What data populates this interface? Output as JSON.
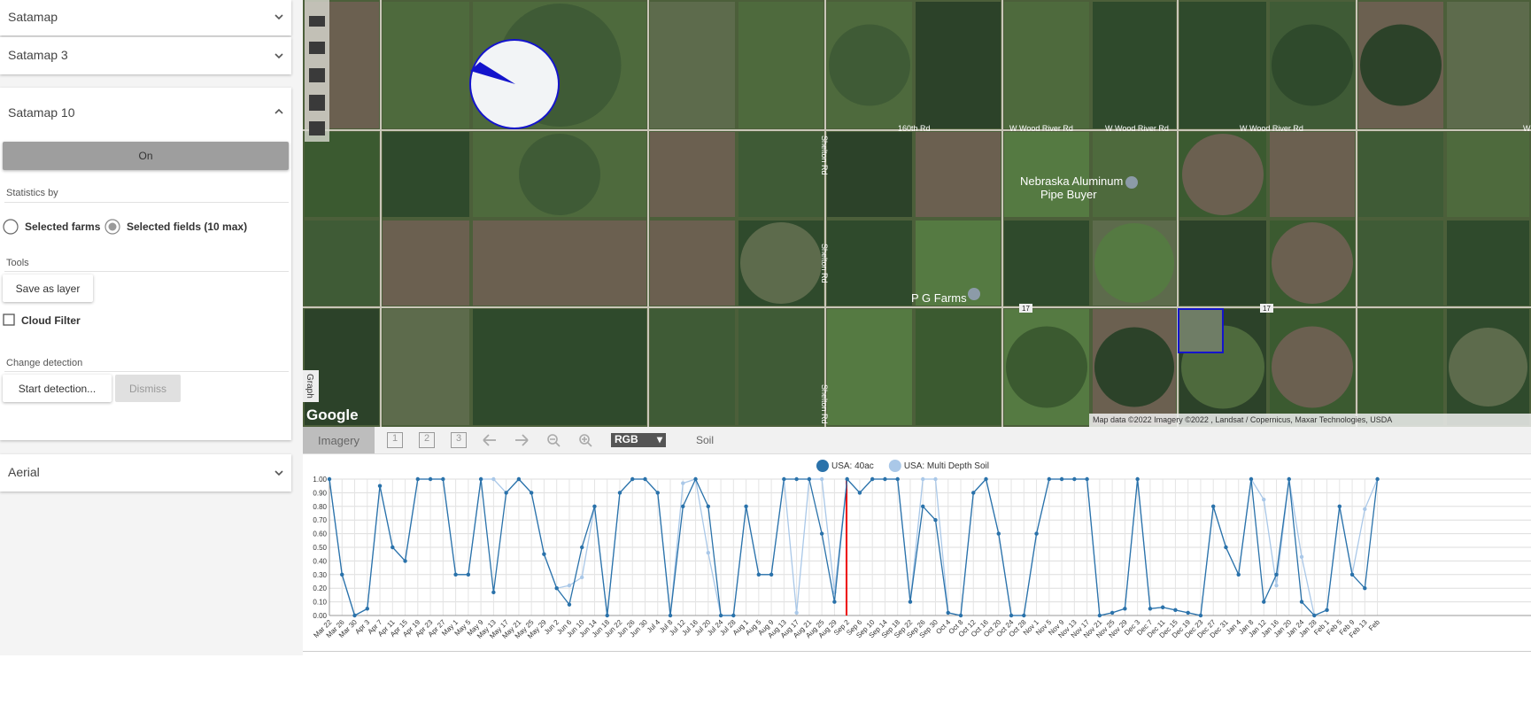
{
  "sidebar": {
    "sections": [
      "Satamap",
      "Satamap 3",
      "Satamap 10",
      "Aerial"
    ],
    "on_button": "On",
    "statistics_label": "Statistics by",
    "options": [
      "Selected farms",
      "Selected fields (10 max)"
    ],
    "tools_label": "Tools",
    "save_button": "Save as layer",
    "cloud_filter": "Cloud Filter",
    "change_label": "Change detection",
    "start_button": "Start detection...",
    "dismiss_button": "Dismiss"
  },
  "map": {
    "labels": [
      "160th Rd",
      "W Wood River Rd",
      "W Wood River Rd",
      "W Wood River Rd",
      "W",
      "Shelton Rd",
      "Shelton Rd",
      "Shelton Rd",
      "Nebraska Aluminum",
      "Pipe Buyer",
      "P G Farms",
      "17",
      "17"
    ],
    "logo": "Google",
    "attribution": "Map data ©2022 Imagery ©2022 , Landsat / Copernicus, Maxar Technologies, USDA",
    "graph_tab": "Graph"
  },
  "toolbar": {
    "tab": "Imagery",
    "pages": [
      "1",
      "2",
      "3"
    ],
    "select": "RGB",
    "soil": "Soil"
  },
  "chart_data": {
    "type": "line",
    "categories": [
      "Mar 22",
      "Mar 26",
      "Mar 30",
      "Apr 3",
      "Apr 7",
      "Apr 11",
      "Apr 15",
      "Apr 19",
      "Apr 23",
      "Apr 27",
      "May 1",
      "May 5",
      "May 9",
      "May 13",
      "May 17",
      "May 21",
      "May 25",
      "May 29",
      "Jun 2",
      "Jun 6",
      "Jun 10",
      "Jun 14",
      "Jun 18",
      "Jun 22",
      "Jun 26",
      "Jun 30",
      "Jul 4",
      "Jul 8",
      "Jul 12",
      "Jul 16",
      "Jul 20",
      "Jul 24",
      "Jul 28",
      "Aug 1",
      "Aug 5",
      "Aug 9",
      "Aug 13",
      "Aug 17",
      "Aug 21",
      "Aug 25",
      "Aug 29",
      "Sep 2",
      "Sep 6",
      "Sep 10",
      "Sep 14",
      "Sep 18",
      "Sep 22",
      "Sep 26",
      "Sep 30",
      "Oct 4",
      "Oct 8",
      "Oct 12",
      "Oct 16",
      "Oct 20",
      "Oct 24",
      "Oct 28",
      "Nov 1",
      "Nov 5",
      "Nov 9",
      "Nov 13",
      "Nov 17",
      "Nov 21",
      "Nov 25",
      "Nov 29",
      "Dec 3",
      "Dec 7",
      "Dec 11",
      "Dec 15",
      "Dec 19",
      "Dec 23",
      "Dec 27",
      "Dec 31",
      "Jan 4",
      "Jan 8",
      "Jan 12",
      "Jan 16",
      "Jan 20",
      "Jan 24",
      "Jan 28",
      "Feb 1",
      "Feb 5",
      "Feb 9",
      "Feb 13",
      "Feb"
    ],
    "series": [
      {
        "name": "USA: 40ac",
        "color": "#2a72aa",
        "values": [
          1,
          0.3,
          0,
          0.05,
          0.95,
          0.5,
          0.4,
          1,
          1,
          1,
          0.3,
          0.3,
          1,
          0.17,
          0.9,
          1,
          0.9,
          0.45,
          0.2,
          0.08,
          0.5,
          0.8,
          0,
          0.9,
          1,
          1,
          0.9,
          0,
          0.8,
          1,
          0.8,
          0,
          0,
          0.8,
          0.3,
          0.3,
          1,
          1,
          1,
          0.6,
          0.1,
          1,
          0.9,
          1,
          1,
          1,
          0.1,
          0.8,
          0.7,
          0.02,
          0,
          0.9,
          1,
          0.6,
          0,
          0,
          0.6,
          1,
          1,
          1,
          1,
          0,
          0.02,
          0.05,
          1,
          0.05,
          0.06,
          0.04,
          0.02,
          0,
          0.8,
          0.5,
          0.3,
          1,
          0.1,
          0.3,
          1,
          0.1,
          0,
          0.04,
          0.8,
          0.3,
          0.2,
          1
        ]
      },
      {
        "name": "USA: Multi Depth Soil",
        "color": "#aac8e8",
        "values": [
          1,
          0.3,
          0,
          0.05,
          0.95,
          0.5,
          0.4,
          1,
          1,
          1,
          0.3,
          0.3,
          1,
          1,
          0.9,
          1,
          0.9,
          0.45,
          0.2,
          0.22,
          0.28,
          0.8,
          0,
          0.9,
          1,
          1,
          0.9,
          0,
          0.97,
          1,
          0.46,
          0,
          0,
          0.8,
          0.3,
          0.3,
          1,
          0.02,
          1,
          1,
          0.17,
          1,
          0.9,
          1,
          1,
          1,
          0.1,
          1,
          1,
          0.02,
          0,
          0.9,
          1,
          0.6,
          0,
          0,
          0.6,
          1,
          1,
          1,
          1,
          0,
          0.02,
          0.05,
          1,
          0.05,
          0.06,
          0.04,
          0.02,
          0,
          0.8,
          0.5,
          0.3,
          1,
          0.85,
          0.22,
          1,
          0.43,
          0,
          0.04,
          0.8,
          0.3,
          0.78,
          1
        ]
      }
    ],
    "ylim": [
      0,
      1
    ],
    "yticks": [
      {
        "value": 0,
        "label": "0.00"
      },
      {
        "value": 0.1,
        "label": "0.10"
      },
      {
        "value": 0.2,
        "label": "0.20"
      },
      {
        "value": 0.3,
        "label": "0.30"
      },
      {
        "value": 0.4,
        "label": "0.40"
      },
      {
        "value": 0.5,
        "label": "0.50"
      },
      {
        "value": 0.6,
        "label": "0.60"
      },
      {
        "value": 0.7,
        "label": "0.70"
      },
      {
        "value": 0.8,
        "label": "0.80"
      },
      {
        "value": 0.9,
        "label": "0.90"
      },
      {
        "value": 1,
        "label": "1.00"
      }
    ],
    "grid": true
  }
}
